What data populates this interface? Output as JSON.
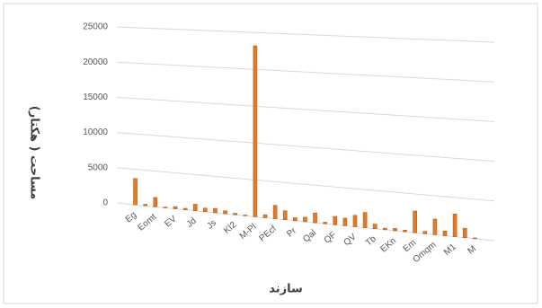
{
  "chart_data": {
    "type": "bar",
    "x_label": "سازند",
    "y_label": "مساحت ( هکتار)",
    "categories": [
      "Eg",
      null,
      "Eomt",
      null,
      "EV",
      null,
      "Jd",
      null,
      "Js",
      null,
      "Kl2",
      null,
      "M-Pl",
      null,
      "PEcf",
      null,
      "Pr",
      null,
      "Qal",
      null,
      "QF",
      null,
      "QV",
      null,
      "Tb",
      null,
      "EKn",
      null,
      "Em",
      null,
      "Omqm",
      null,
      "M1",
      null,
      "M",
      null
    ],
    "values": [
      3700,
      200,
      1300,
      100,
      300,
      200,
      900,
      500,
      600,
      400,
      200,
      100,
      23200,
      400,
      1800,
      1200,
      400,
      600,
      1300,
      200,
      1100,
      1000,
      1500,
      2000,
      600,
      200,
      300,
      200,
      2800,
      300,
      2000,
      600,
      2900,
      1200,
      100,
      0
    ],
    "color": "#e07b2a",
    "ylim": [
      0,
      25000
    ],
    "yticks": [
      0,
      5000,
      10000,
      15000,
      20000,
      25000
    ],
    "grid": true
  }
}
